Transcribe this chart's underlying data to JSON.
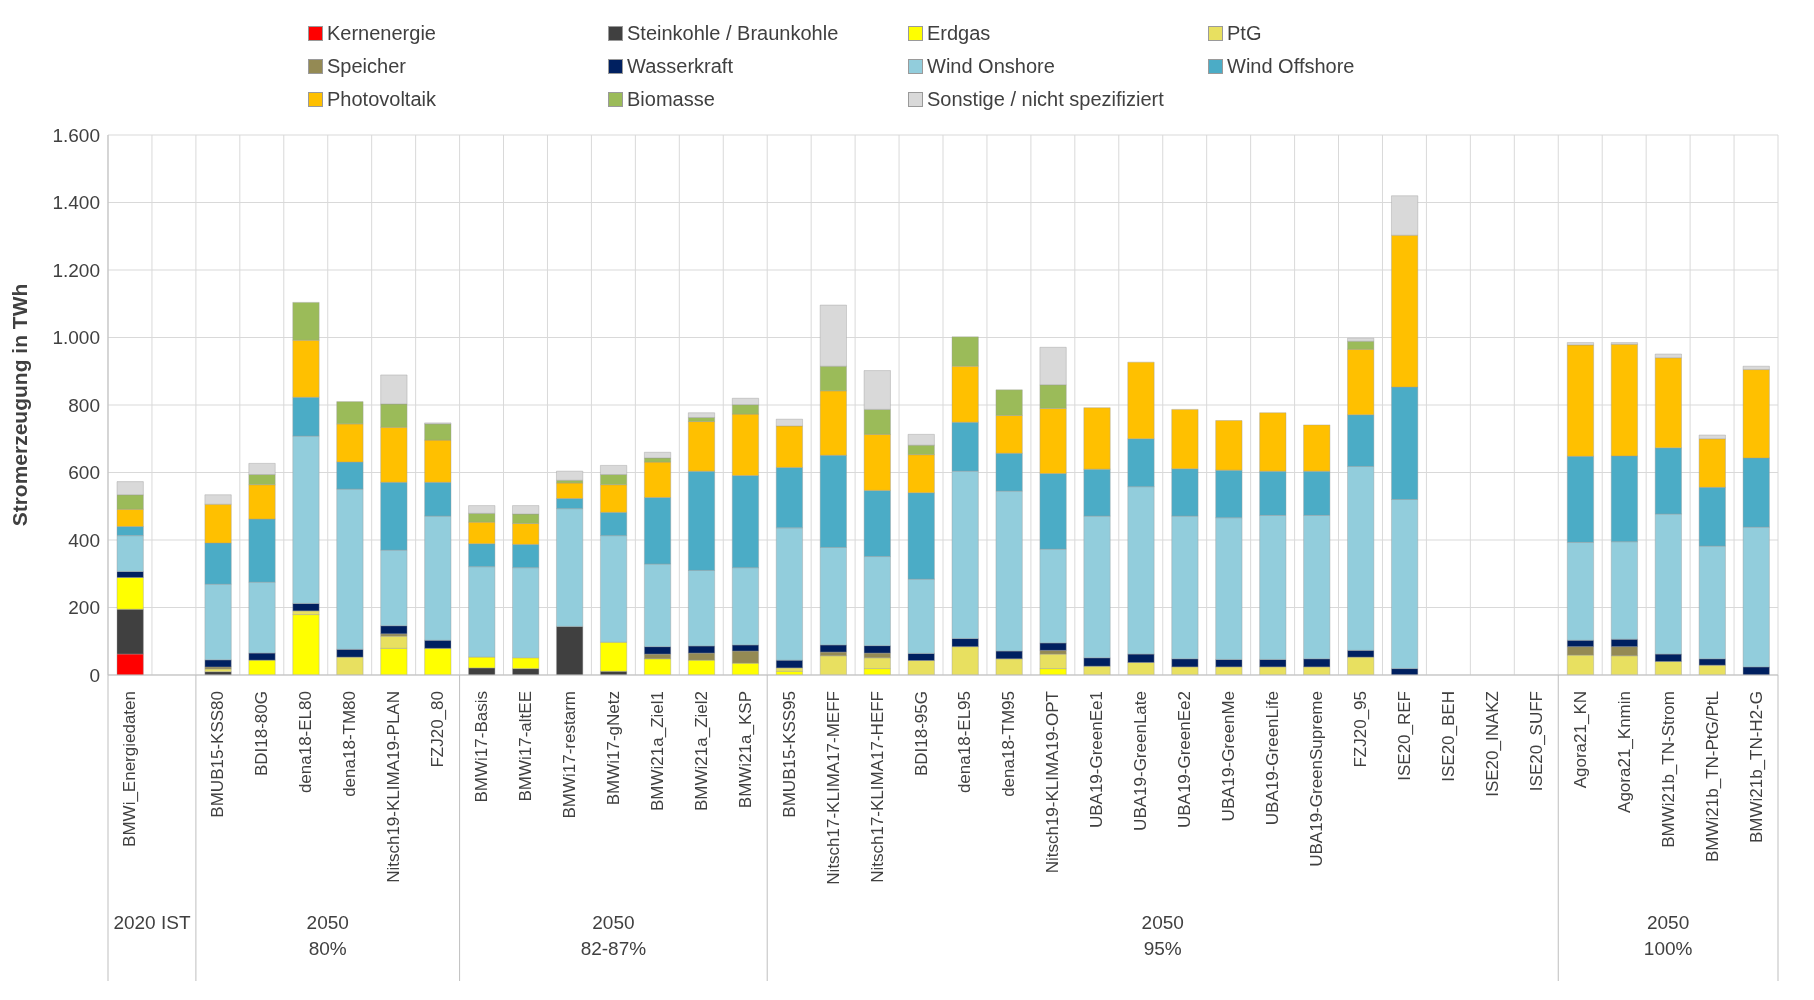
{
  "chart_data": {
    "type": "bar",
    "stacked": true,
    "ylabel": "Stromerzeugung in TWh",
    "categories": [
      "BMWi_Energiedaten",
      null,
      "BMUB15-KSS80",
      "BDI18-80G",
      "dena18-EL80",
      "dena18-TM80",
      "Nitsch19-KLIMA19-PLAN",
      "FZJ20_80",
      "BMWi17-Basis",
      "BMWi17-altEE",
      "BMWi17-restarm",
      "BMWi17-gNetz",
      "BMWi21a_Ziel1",
      "BMWi21a_Ziel2",
      "BMWi21a_KSP",
      "BMUB15-KSS95",
      "Nitsch17-KLIMA17-MEFF",
      "Nitsch17-KLIMA17-HEFF",
      "BDI18-95G",
      "dena18-EL95",
      "dena18-TM95",
      "Nitsch19-KLIMA19-OPT",
      "UBA19-GreenEe1",
      "UBA19-GreenLate",
      "UBA19-GreenEe2",
      "UBA19-GreenMe",
      "UBA19-GreenLife",
      "UBA19-GreenSupreme",
      "FZJ20_95",
      "ISE20_REF",
      "ISE20_BEH",
      "ISE20_INAKZ",
      "ISE20_SUFF",
      "Agora21_KN",
      "Agora21_Knmin",
      "BMWi21b_TN-Strom",
      "BMWi21b_TN-PtG/PtL",
      "BMWi21b_TN-H2-G"
    ],
    "series": [
      {
        "name": "Kernenergie",
        "color": "#ff0000",
        "values": [
          62,
          null,
          null,
          null,
          null,
          null,
          null,
          null,
          null,
          null,
          null,
          null,
          null,
          null,
          null,
          null,
          null,
          null,
          null,
          null,
          null,
          null,
          null,
          null,
          null,
          null,
          null,
          null,
          null,
          null,
          null,
          null,
          null,
          null,
          null,
          null,
          null,
          null
        ]
      },
      {
        "name": "Steinkohle / Braunkohle",
        "color": "#404040",
        "values": [
          133,
          null,
          10,
          null,
          null,
          null,
          null,
          null,
          21,
          19,
          144,
          11,
          null,
          null,
          null,
          null,
          null,
          null,
          null,
          null,
          null,
          null,
          null,
          null,
          null,
          null,
          null,
          null,
          null,
          null,
          null,
          null,
          null,
          null,
          null,
          null,
          null,
          null
        ]
      },
      {
        "name": "Erdgas",
        "color": "#ffff00",
        "values": [
          94,
          null,
          null,
          44,
          179,
          null,
          79,
          79,
          32,
          32,
          null,
          86,
          48,
          44,
          35,
          11,
          null,
          19,
          null,
          null,
          null,
          19,
          null,
          null,
          null,
          null,
          null,
          null,
          null,
          null,
          null,
          null,
          null,
          null,
          null,
          null,
          null,
          null
        ]
      },
      {
        "name": "PtG",
        "color": "#e8e060",
        "values": [
          null,
          null,
          8,
          null,
          11,
          53,
          36,
          null,
          null,
          null,
          null,
          null,
          null,
          null,
          null,
          10,
          57,
          32,
          43,
          84,
          48,
          43,
          26,
          37,
          24,
          24,
          24,
          24,
          53,
          null,
          null,
          null,
          null,
          59,
          57,
          40,
          29,
          null
        ]
      },
      {
        "name": "Speicher",
        "color": "#948a54",
        "values": [
          null,
          null,
          6,
          null,
          null,
          null,
          7,
          null,
          null,
          null,
          null,
          null,
          14,
          21,
          36,
          null,
          11,
          14,
          null,
          null,
          null,
          11,
          null,
          null,
          null,
          null,
          null,
          null,
          null,
          null,
          null,
          null,
          null,
          25,
          27,
          null,
          null,
          null
        ]
      },
      {
        "name": "Wasserkraft",
        "color": "#002060",
        "values": [
          18,
          null,
          21,
          21,
          22,
          23,
          24,
          24,
          null,
          null,
          null,
          null,
          22,
          21,
          18,
          23,
          21,
          22,
          21,
          24,
          23,
          22,
          25,
          25,
          24,
          22,
          22,
          24,
          20,
          19,
          null,
          null,
          null,
          19,
          22,
          22,
          19,
          24
        ]
      },
      {
        "name": "Wind Onshore",
        "color": "#92cddc",
        "values": [
          106,
          null,
          224,
          210,
          496,
          475,
          224,
          368,
          268,
          267,
          349,
          316,
          245,
          224,
          229,
          392,
          289,
          264,
          220,
          496,
          474,
          278,
          420,
          496,
          423,
          420,
          427,
          425,
          545,
          501,
          null,
          null,
          null,
          290,
          289,
          415,
          334,
          414
        ]
      },
      {
        "name": "Wind Offshore",
        "color": "#4bacc6",
        "values": [
          27,
          null,
          122,
          187,
          115,
          80,
          201,
          100,
          68,
          69,
          30,
          69,
          197,
          294,
          273,
          179,
          273,
          196,
          256,
          145,
          112,
          224,
          139,
          142,
          140,
          141,
          131,
          131,
          153,
          333,
          null,
          null,
          null,
          255,
          254,
          196,
          174,
          205
        ]
      },
      {
        "name": "Photovoltaik",
        "color": "#ffc000",
        "values": [
          51,
          null,
          115,
          102,
          169,
          113,
          163,
          125,
          64,
          62,
          46,
          82,
          105,
          147,
          182,
          123,
          191,
          166,
          113,
          166,
          112,
          193,
          182,
          227,
          176,
          147,
          173,
          137,
          194,
          450,
          null,
          null,
          null,
          330,
          331,
          267,
          144,
          262
        ]
      },
      {
        "name": "Biomasse",
        "color": "#9bbb59",
        "values": [
          43,
          null,
          null,
          30,
          112,
          66,
          69,
          48,
          26,
          28,
          8,
          30,
          12,
          12,
          28,
          null,
          73,
          74,
          28,
          87,
          76,
          70,
          null,
          null,
          null,
          null,
          null,
          null,
          24,
          null,
          null,
          null,
          null,
          null,
          null,
          null,
          null,
          null
        ]
      },
      {
        "name": "Sonstige / nicht spezifiziert",
        "color": "#d9d9d9",
        "values": [
          39,
          null,
          28,
          33,
          null,
          null,
          86,
          3,
          23,
          25,
          27,
          27,
          17,
          14,
          19,
          20,
          181,
          115,
          32,
          null,
          null,
          111,
          null,
          null,
          null,
          null,
          null,
          null,
          9,
          117,
          null,
          null,
          null,
          7,
          5,
          11,
          11,
          10
        ]
      }
    ],
    "ylim": [
      0,
      1600
    ],
    "yticks": [
      0,
      200,
      400,
      600,
      800,
      {
        "value": 1000,
        "label": "1.000"
      },
      {
        "value": 1200,
        "label": "1.200"
      },
      {
        "value": 1400,
        "label": "1.400"
      },
      {
        "value": 1600,
        "label": "1.600"
      }
    ],
    "grid": true,
    "legend": "top",
    "annotations": [
      "2020 IST",
      "2050\n80%",
      "2050\n82-87%",
      "2050\n95%",
      "2050\n100%"
    ]
  }
}
